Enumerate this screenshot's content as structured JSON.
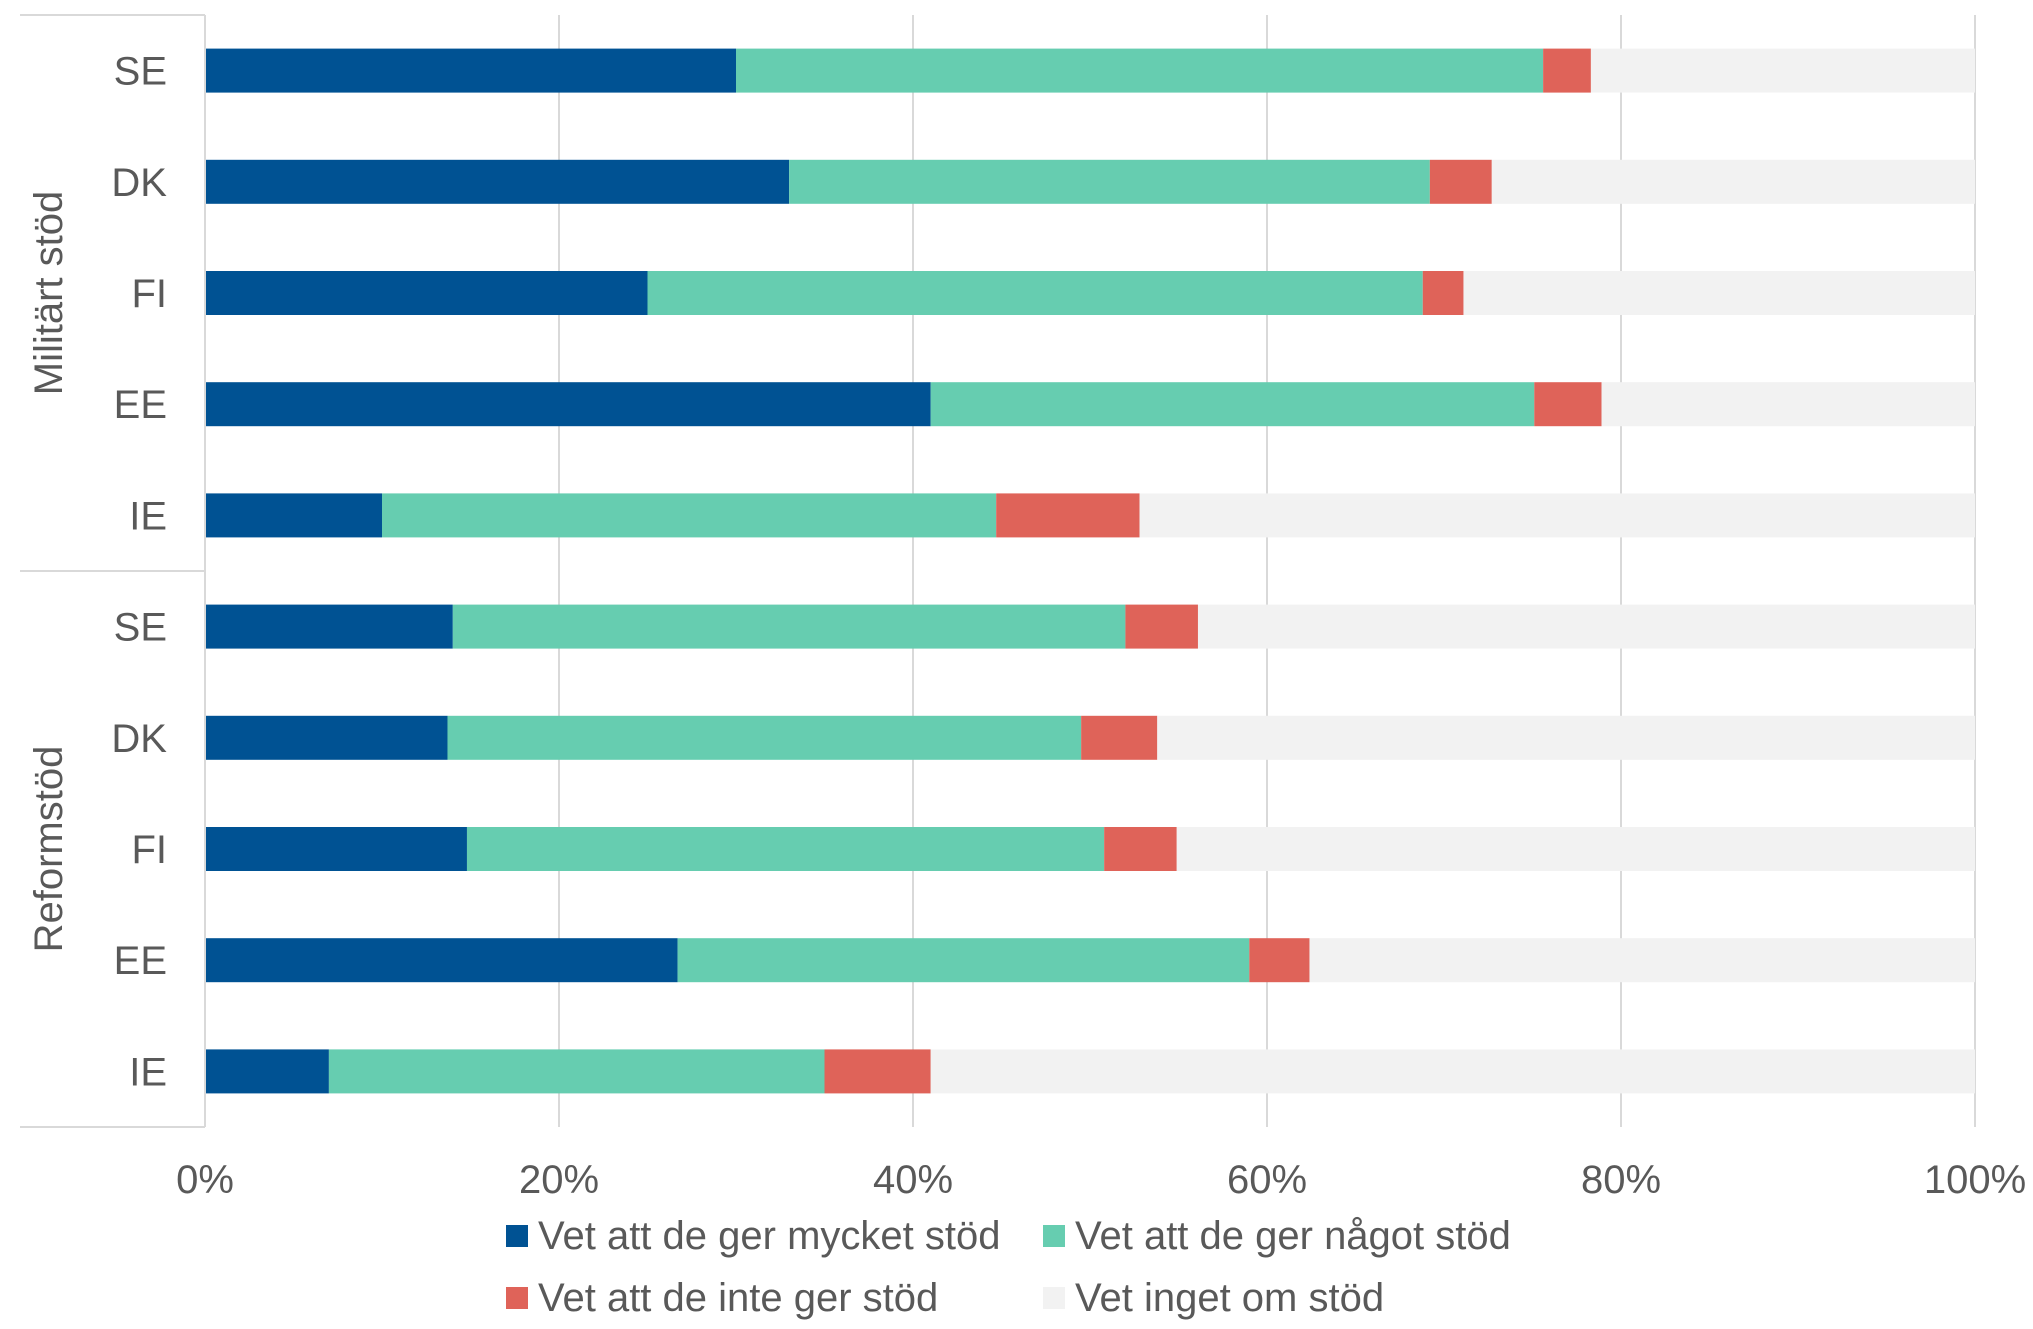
{
  "chart_data": {
    "type": "bar",
    "orientation": "horizontal",
    "stacked": true,
    "title": "",
    "xlabel": "",
    "ylabel": "",
    "xlim": [
      0,
      100
    ],
    "x_ticks": [
      "0%",
      "20%",
      "40%",
      "60%",
      "80%",
      "100%"
    ],
    "grid": "vertical",
    "legend_position": "bottom",
    "groups": [
      {
        "label": "Militärt stöd",
        "categories": [
          "SE",
          "DK",
          "FI",
          "EE",
          "IE"
        ]
      },
      {
        "label": "Reformstöd",
        "categories": [
          "SE",
          "DK",
          "FI",
          "EE",
          "IE"
        ]
      }
    ],
    "series": [
      {
        "name": "Vet att de ger mycket stöd",
        "color": "#005293",
        "values": [
          30,
          33,
          25,
          41,
          10,
          14,
          13.7,
          14.8,
          26.7,
          7
        ]
      },
      {
        "name": "Vet att de ger något stöd",
        "color": "#66CDB0",
        "values": [
          45.6,
          36.2,
          43.8,
          34.1,
          34.7,
          38,
          35.8,
          36,
          32.3,
          28
        ]
      },
      {
        "name": "Vet att de inte ger stöd",
        "color": "#DF6359",
        "values": [
          2.7,
          3.5,
          2.3,
          3.8,
          8.1,
          4.1,
          4.3,
          4.1,
          3.4,
          6
        ]
      },
      {
        "name": "Vet inget om stöd",
        "color": "#F2F2F2",
        "values": [
          21.7,
          27.3,
          28.9,
          21.1,
          47.2,
          43.9,
          46.2,
          45.1,
          37.6,
          59
        ]
      }
    ]
  }
}
